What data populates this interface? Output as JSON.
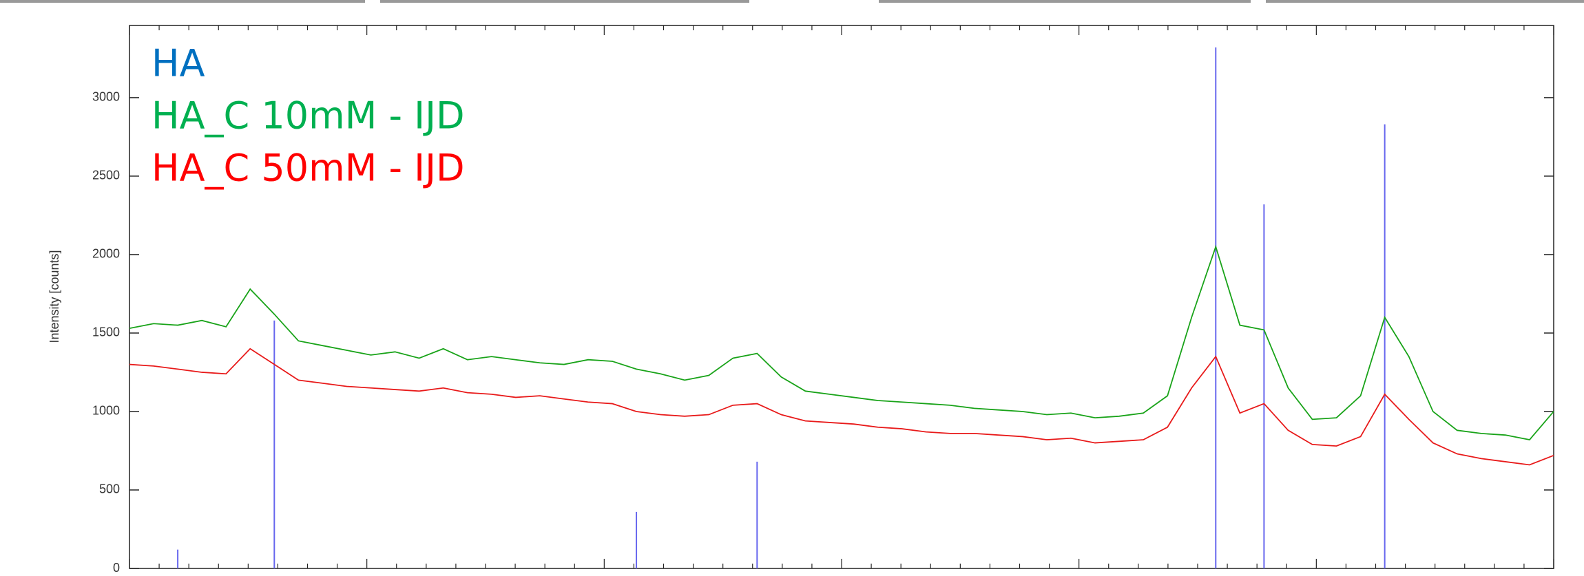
{
  "chart_data": {
    "type": "line",
    "y_label": "Intensity [counts]",
    "ylim": [
      0,
      3460
    ],
    "yticks": [
      0,
      500,
      1000,
      1500,
      2000,
      2500,
      3000
    ],
    "series": [
      {
        "name": "HA",
        "color": "#6666ee",
        "legend_color": "#0070c0",
        "style": "stick",
        "values": [
          null,
          null,
          120,
          null,
          null,
          null,
          1580,
          null,
          null,
          null,
          null,
          null,
          null,
          null,
          null,
          null,
          null,
          null,
          null,
          null,
          null,
          360,
          null,
          null,
          null,
          null,
          680,
          null,
          null,
          null,
          null,
          null,
          null,
          null,
          null,
          null,
          null,
          null,
          null,
          null,
          null,
          null,
          null,
          null,
          null,
          3320,
          null,
          2320,
          null,
          null,
          null,
          null,
          2830,
          null,
          null,
          null,
          null,
          null,
          null,
          null
        ]
      },
      {
        "name": "HA_C 10mM - IJD",
        "color": "#19a319",
        "legend_color": "#00b050",
        "style": "line",
        "values": [
          1530,
          1560,
          1550,
          1580,
          1540,
          1780,
          1620,
          1450,
          1420,
          1390,
          1360,
          1380,
          1340,
          1400,
          1330,
          1350,
          1330,
          1310,
          1300,
          1330,
          1320,
          1270,
          1240,
          1200,
          1230,
          1340,
          1370,
          1220,
          1130,
          1110,
          1090,
          1070,
          1060,
          1050,
          1040,
          1020,
          1010,
          1000,
          980,
          990,
          960,
          970,
          990,
          1100,
          1600,
          2050,
          1550,
          1520,
          1150,
          950,
          960,
          1100,
          1600,
          1350,
          1000,
          880,
          860,
          850,
          820,
          1000
        ]
      },
      {
        "name": "HA_C 50mM - IJD",
        "color": "#e81a1a",
        "legend_color": "#ff0000",
        "style": "line",
        "values": [
          1300,
          1290,
          1270,
          1250,
          1240,
          1400,
          1300,
          1200,
          1180,
          1160,
          1150,
          1140,
          1130,
          1150,
          1120,
          1110,
          1090,
          1100,
          1080,
          1060,
          1050,
          1000,
          980,
          970,
          980,
          1040,
          1050,
          980,
          940,
          930,
          920,
          900,
          890,
          870,
          860,
          860,
          850,
          840,
          820,
          830,
          800,
          810,
          820,
          900,
          1150,
          1350,
          990,
          1050,
          880,
          790,
          780,
          840,
          1110,
          950,
          800,
          730,
          700,
          680,
          660,
          720
        ]
      }
    ]
  }
}
